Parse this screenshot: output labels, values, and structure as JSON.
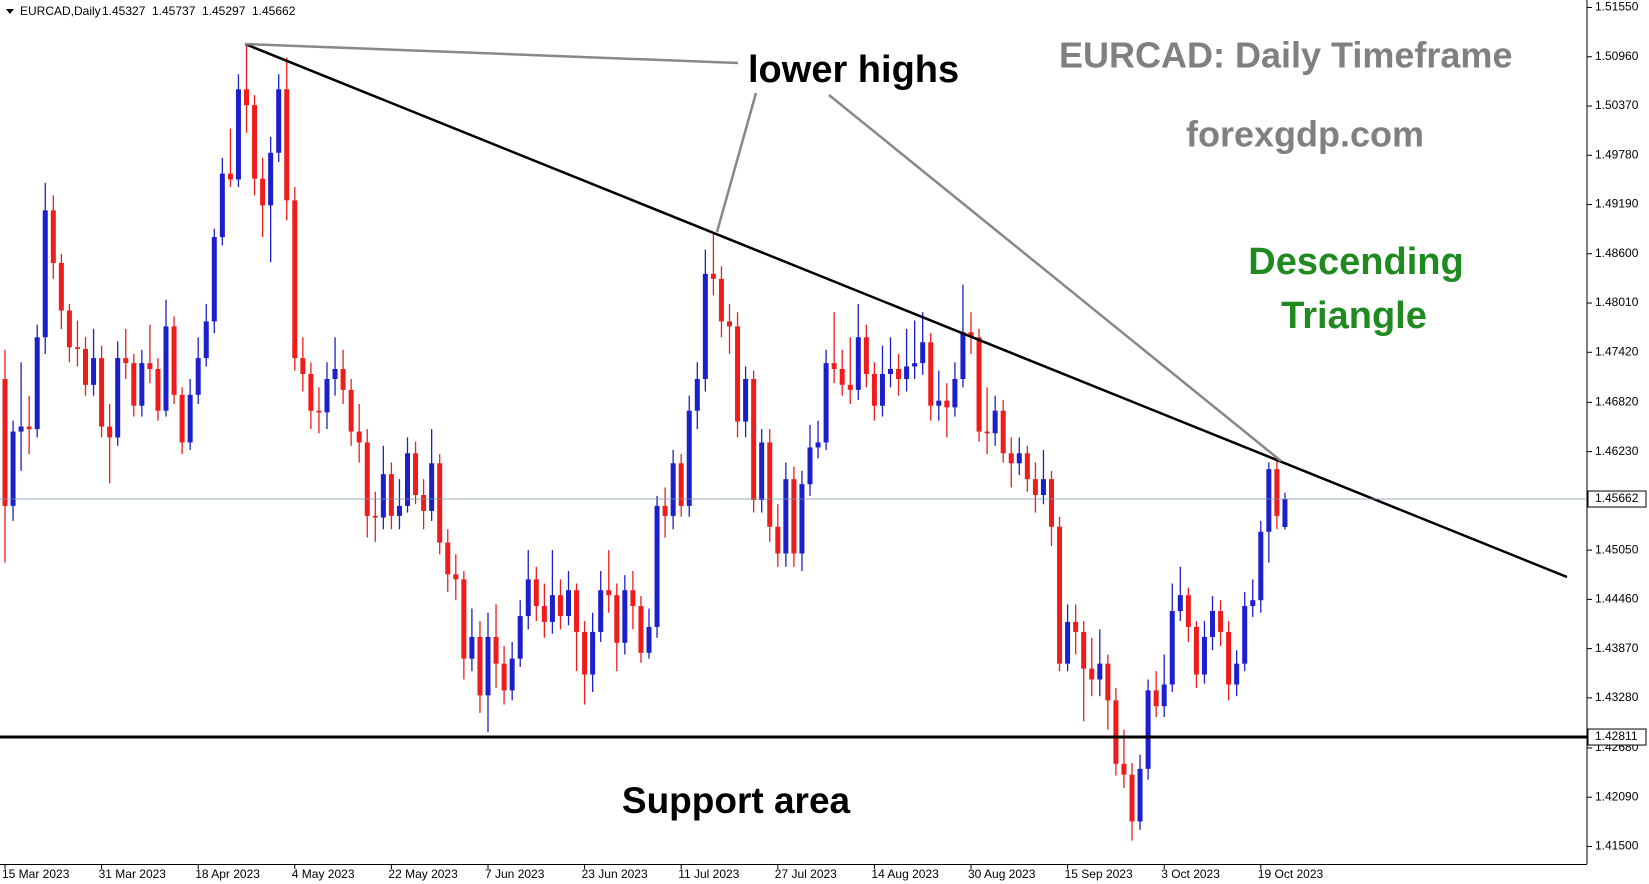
{
  "chart_data": {
    "type": "candlestick",
    "symbol": "EURCAD,Daily",
    "title": "EURCAD: Daily Timeframe",
    "subtitle": "forexgdp.com",
    "pattern_label": [
      "Descending",
      "Triangle"
    ],
    "annotation": "lower highs",
    "support_label": "Support area",
    "support_level": {
      "value": 1.42811,
      "label": "1.42811"
    },
    "last_price_label": "1.45662",
    "up_color": "#1c1fcc",
    "down_color": "#f01c1c",
    "categories": [
      "15 Mar 2023",
      null,
      null,
      null,
      null,
      null,
      null,
      null,
      null,
      null,
      null,
      null,
      "31 Mar 2023",
      null,
      null,
      null,
      null,
      null,
      null,
      null,
      null,
      null,
      null,
      null,
      "18 Apr 2023",
      null,
      null,
      null,
      null,
      null,
      null,
      null,
      null,
      null,
      null,
      null,
      "4 May 2023",
      null,
      null,
      null,
      null,
      null,
      null,
      null,
      null,
      null,
      null,
      null,
      "22 May 2023",
      null,
      null,
      null,
      null,
      null,
      null,
      null,
      null,
      null,
      null,
      null,
      "7 Jun 2023",
      null,
      null,
      null,
      null,
      null,
      null,
      null,
      null,
      null,
      null,
      null,
      "23 Jun 2023",
      null,
      null,
      null,
      null,
      null,
      null,
      null,
      null,
      null,
      null,
      null,
      "11 Jul 2023",
      null,
      null,
      null,
      null,
      null,
      null,
      null,
      null,
      null,
      null,
      null,
      "27 Jul 2023",
      null,
      null,
      null,
      null,
      null,
      null,
      null,
      null,
      null,
      null,
      null,
      "14 Aug 2023",
      null,
      null,
      null,
      null,
      null,
      null,
      null,
      null,
      null,
      null,
      null,
      "30 Aug 2023",
      null,
      null,
      null,
      null,
      null,
      null,
      null,
      null,
      null,
      null,
      null,
      "15 Sep 2023",
      null,
      null,
      null,
      null,
      null,
      null,
      null,
      null,
      null,
      null,
      null,
      "3 Oct 2023",
      null,
      null,
      null,
      null,
      null,
      null,
      null,
      null,
      null,
      null,
      null,
      "19 Oct 2023",
      null,
      null,
      null
    ],
    "open": [
      1.471,
      1.4558,
      1.4647,
      1.4653,
      1.465,
      1.476,
      1.4912,
      1.4849,
      1.4792,
      1.4748,
      1.4746,
      1.4703,
      1.4735,
      1.4653,
      1.464,
      1.4735,
      1.4729,
      1.4678,
      1.4729,
      1.4722,
      1.4672,
      1.4773,
      1.4691,
      1.4634,
      1.4691,
      1.4735,
      1.4779,
      1.488,
      1.4956,
      1.4949,
      1.5057,
      1.5038,
      1.495,
      1.4918,
      1.4981,
      1.5057,
      1.4924,
      1.4735,
      1.4716,
      1.4672,
      1.467,
      1.471,
      1.4722,
      1.4697,
      1.4647,
      1.4634,
      1.4546,
      1.4544,
      1.4596,
      1.4546,
      1.4558,
      1.4621,
      1.4571,
      1.4552,
      1.4609,
      1.4514,
      1.4476,
      1.447,
      1.4375,
      1.4401,
      1.4331,
      1.4401,
      1.4369,
      1.4337,
      1.4375,
      1.4426,
      1.447,
      1.4438,
      1.4419,
      1.4451,
      1.4426,
      1.4457,
      1.4407,
      1.4356,
      1.4407,
      1.4457,
      1.4451,
      1.4394,
      1.4457,
      1.4438,
      1.4382,
      1.4413,
      1.4558,
      1.4546,
      1.4609,
      1.4558,
      1.4672,
      1.471,
      1.4836,
      1.483,
      1.4779,
      1.4773,
      1.4659,
      1.471,
      1.4565,
      1.4634,
      1.4533,
      1.4501,
      1.459,
      1.4501,
      1.4584,
      1.4628,
      1.4634,
      1.4729,
      1.4722,
      1.4703,
      1.4697,
      1.476,
      1.4716,
      1.4678,
      1.4716,
      1.4722,
      1.471,
      1.4725,
      1.4729,
      1.4754,
      1.4678,
      1.4684,
      1.4676,
      1.471,
      1.4766,
      1.476,
      1.4647,
      1.4645,
      1.4672,
      1.4621,
      1.4609,
      1.4621,
      1.459,
      1.4571,
      1.459,
      1.4533,
      1.4369,
      1.4419,
      1.4407,
      1.4363,
      1.435,
      1.4369,
      1.4325,
      1.4249,
      1.4236,
      1.418,
      1.4243,
      1.4337,
      1.4318,
      1.4344,
      1.4432,
      1.4451,
      1.4413,
      1.4356,
      1.4401,
      1.4432,
      1.4407,
      1.4344,
      1.4369,
      1.4438,
      1.4445,
      1.4527,
      1.4602,
      1.45327
    ],
    "high": [
      1.4745,
      1.466,
      1.473,
      1.469,
      1.4775,
      1.4945,
      1.493,
      1.486,
      1.48,
      1.478,
      1.476,
      1.477,
      1.475,
      1.468,
      1.4755,
      1.477,
      1.474,
      1.4745,
      1.4775,
      1.4735,
      1.4805,
      1.4785,
      1.47,
      1.471,
      1.476,
      1.48,
      1.489,
      1.4975,
      1.501,
      1.5075,
      1.5111,
      1.505,
      1.4975,
      1.5,
      1.5075,
      1.5095,
      1.494,
      1.476,
      1.473,
      1.47,
      1.473,
      1.476,
      1.4745,
      1.471,
      1.468,
      1.465,
      1.4575,
      1.463,
      1.461,
      1.459,
      1.464,
      1.4635,
      1.459,
      1.465,
      1.462,
      1.453,
      1.45,
      1.448,
      1.4435,
      1.442,
      1.443,
      1.444,
      1.439,
      1.4395,
      1.4445,
      1.4505,
      1.4485,
      1.4465,
      1.4505,
      1.447,
      1.448,
      1.4465,
      1.442,
      1.443,
      1.448,
      1.4505,
      1.4465,
      1.4475,
      1.448,
      1.445,
      1.4435,
      1.457,
      1.458,
      1.4625,
      1.462,
      1.469,
      1.473,
      1.4865,
      1.4884,
      1.4845,
      1.48,
      1.479,
      1.4725,
      1.472,
      1.465,
      1.465,
      1.456,
      1.461,
      1.4605,
      1.46,
      1.4655,
      1.466,
      1.4745,
      1.479,
      1.4745,
      1.476,
      1.48,
      1.4775,
      1.473,
      1.475,
      1.476,
      1.474,
      1.477,
      1.478,
      1.479,
      1.4765,
      1.472,
      1.4705,
      1.473,
      1.4823,
      1.479,
      1.477,
      1.47,
      1.469,
      1.4685,
      1.464,
      1.464,
      1.463,
      1.461,
      1.4625,
      1.46,
      1.4545,
      1.444,
      1.444,
      1.442,
      1.44,
      1.441,
      1.438,
      1.434,
      1.429,
      1.425,
      1.426,
      1.435,
      1.436,
      1.438,
      1.4465,
      1.4485,
      1.446,
      1.442,
      1.442,
      1.445,
      1.4445,
      1.442,
      1.4385,
      1.4455,
      1.447,
      1.454,
      1.461,
      1.4613,
      1.45737
    ],
    "low": [
      1.449,
      1.454,
      1.46,
      1.462,
      1.464,
      1.474,
      1.483,
      1.477,
      1.473,
      1.4725,
      1.469,
      1.469,
      1.464,
      1.4585,
      1.463,
      1.471,
      1.4665,
      1.4665,
      1.4705,
      1.466,
      1.4665,
      1.468,
      1.462,
      1.4625,
      1.468,
      1.4725,
      1.4765,
      1.487,
      1.494,
      1.494,
      1.5005,
      1.493,
      1.488,
      1.485,
      1.497,
      1.49,
      1.472,
      1.4695,
      1.465,
      1.4645,
      1.465,
      1.469,
      1.468,
      1.463,
      1.461,
      1.452,
      1.4515,
      1.453,
      1.453,
      1.453,
      1.455,
      1.456,
      1.453,
      1.454,
      1.45,
      1.4455,
      1.4445,
      1.435,
      1.436,
      1.431,
      1.4287,
      1.434,
      1.432,
      1.4325,
      1.4365,
      1.441,
      1.442,
      1.44,
      1.4405,
      1.441,
      1.4415,
      1.436,
      1.432,
      1.4335,
      1.4395,
      1.443,
      1.436,
      1.438,
      1.441,
      1.437,
      1.4375,
      1.44,
      1.452,
      1.453,
      1.4545,
      1.4545,
      1.465,
      1.4695,
      1.481,
      1.476,
      1.474,
      1.464,
      1.464,
      1.455,
      1.455,
      1.4515,
      1.4485,
      1.4485,
      1.4485,
      1.448,
      1.457,
      1.4615,
      1.4625,
      1.4705,
      1.469,
      1.468,
      1.4685,
      1.47,
      1.466,
      1.4665,
      1.47,
      1.469,
      1.4695,
      1.471,
      1.4715,
      1.466,
      1.466,
      1.464,
      1.4665,
      1.47,
      1.474,
      1.4635,
      1.462,
      1.463,
      1.461,
      1.458,
      1.4595,
      1.4575,
      1.455,
      1.456,
      1.451,
      1.436,
      1.436,
      1.438,
      1.43,
      1.433,
      1.433,
      1.429,
      1.4235,
      1.422,
      1.4157,
      1.417,
      1.423,
      1.4305,
      1.4305,
      1.4335,
      1.442,
      1.4395,
      1.434,
      1.4345,
      1.4385,
      1.439,
      1.4325,
      1.433,
      1.436,
      1.4425,
      1.443,
      1.449,
      1.453,
      1.45297
    ],
    "close": [
      1.4558,
      1.4647,
      1.4653,
      1.465,
      1.476,
      1.4912,
      1.4849,
      1.4792,
      1.4748,
      1.4746,
      1.4703,
      1.4735,
      1.4653,
      1.464,
      1.4735,
      1.4729,
      1.4678,
      1.4729,
      1.4722,
      1.4672,
      1.4773,
      1.4691,
      1.4634,
      1.4691,
      1.4735,
      1.4779,
      1.488,
      1.4956,
      1.4949,
      1.5057,
      1.5038,
      1.495,
      1.4918,
      1.4981,
      1.5057,
      1.4924,
      1.4735,
      1.4716,
      1.4672,
      1.467,
      1.471,
      1.4722,
      1.4697,
      1.4647,
      1.4634,
      1.4546,
      1.4544,
      1.4596,
      1.4546,
      1.4558,
      1.4621,
      1.4571,
      1.4552,
      1.4609,
      1.4514,
      1.4476,
      1.447,
      1.4375,
      1.4401,
      1.4331,
      1.4401,
      1.4369,
      1.4337,
      1.4375,
      1.4426,
      1.447,
      1.4438,
      1.4419,
      1.4451,
      1.4426,
      1.4457,
      1.4407,
      1.4356,
      1.4407,
      1.4457,
      1.4451,
      1.4394,
      1.4457,
      1.4438,
      1.4382,
      1.4413,
      1.4558,
      1.4546,
      1.4609,
      1.4558,
      1.4672,
      1.471,
      1.4836,
      1.483,
      1.4779,
      1.4773,
      1.4659,
      1.471,
      1.4565,
      1.4634,
      1.4533,
      1.4501,
      1.459,
      1.4501,
      1.4584,
      1.4628,
      1.4634,
      1.4729,
      1.4722,
      1.4703,
      1.4697,
      1.476,
      1.4716,
      1.4678,
      1.4716,
      1.4722,
      1.471,
      1.4725,
      1.4729,
      1.4754,
      1.4678,
      1.4684,
      1.4676,
      1.471,
      1.4766,
      1.476,
      1.4647,
      1.4645,
      1.4672,
      1.4621,
      1.4609,
      1.4621,
      1.459,
      1.4571,
      1.459,
      1.4533,
      1.4369,
      1.4419,
      1.4407,
      1.4363,
      1.435,
      1.4369,
      1.4325,
      1.4249,
      1.4236,
      1.418,
      1.4243,
      1.4337,
      1.4318,
      1.4344,
      1.4432,
      1.4451,
      1.4413,
      1.4356,
      1.4401,
      1.4432,
      1.4407,
      1.4344,
      1.4369,
      1.4438,
      1.4445,
      1.4527,
      1.4602,
      1.4546,
      1.45662
    ],
    "header_values": [
      "1.45327",
      "1.45737",
      "1.45297",
      "1.45662"
    ],
    "ylim": [
      1.4129,
      1.5164
    ],
    "yticks": [
      {
        "value": 1.5155,
        "label": "1.51550"
      },
      {
        "value": 1.5096,
        "label": "1.50960"
      },
      {
        "value": 1.5037,
        "label": "1.50370"
      },
      {
        "value": 1.4978,
        "label": "1.49780"
      },
      {
        "value": 1.4919,
        "label": "1.49190"
      },
      {
        "value": 1.486,
        "label": "1.48600"
      },
      {
        "value": 1.4801,
        "label": "1.48010"
      },
      {
        "value": 1.4742,
        "label": "1.47420"
      },
      {
        "value": 1.4682,
        "label": "1.46820"
      },
      {
        "value": 1.4623,
        "label": "1.46230"
      },
      {
        "value": 1.4505,
        "label": "1.45050"
      },
      {
        "value": 1.4446,
        "label": "1.44460"
      },
      {
        "value": 1.4387,
        "label": "1.43870"
      },
      {
        "value": 1.4328,
        "label": "1.43280"
      },
      {
        "value": 1.4268,
        "label": "1.42680"
      },
      {
        "value": 1.4209,
        "label": "1.42090"
      },
      {
        "value": 1.415,
        "label": "1.41500"
      }
    ]
  }
}
